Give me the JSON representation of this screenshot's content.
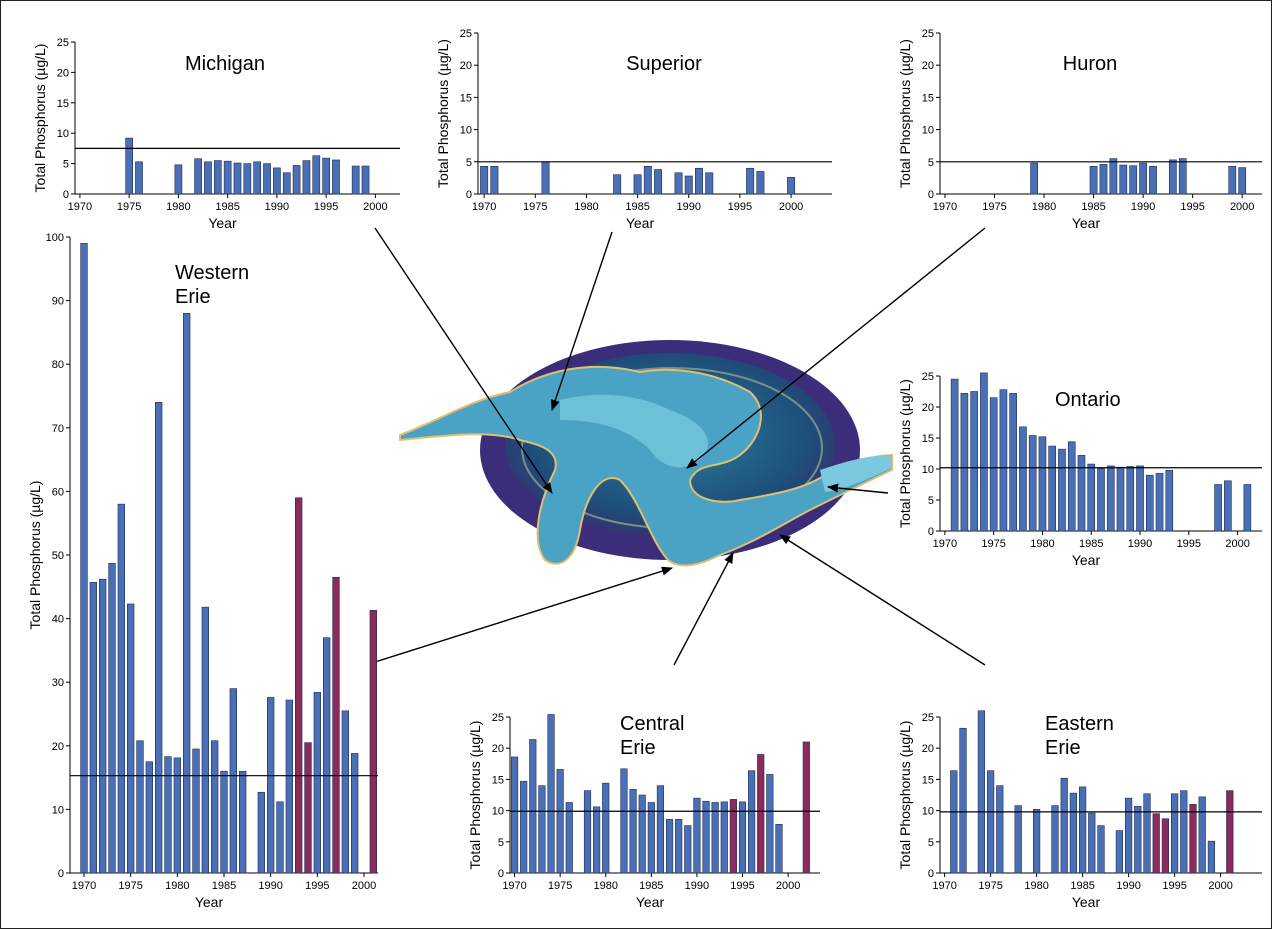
{
  "chart_data": [
    {
      "type": "bar",
      "title": "Michigan",
      "ylabel": "Total Phosphorus (µg/L)",
      "xlabel": "Year",
      "x": [
        1975,
        1976,
        1980,
        1982,
        1983,
        1984,
        1985,
        1986,
        1987,
        1988,
        1989,
        1990,
        1991,
        1992,
        1993,
        1994,
        1995,
        1996,
        1998,
        1999
      ],
      "values": [
        9.2,
        5.3,
        4.8,
        5.8,
        5.3,
        5.5,
        5.4,
        5.1,
        5.0,
        5.3,
        5.0,
        4.3,
        3.5,
        4.7,
        5.5,
        6.3,
        5.9,
        5.6,
        4.6,
        4.6
      ],
      "color": "#4a6fb5",
      "xlim": [
        1969.5,
        2002.5
      ],
      "ylim": [
        0,
        25
      ],
      "xticks": [
        1970,
        1975,
        1980,
        1985,
        1990,
        1995,
        2000
      ],
      "yticks": [
        0,
        5,
        10,
        15,
        20,
        25
      ],
      "reference_line": 7.5
    },
    {
      "type": "bar",
      "title": "Superior",
      "ylabel": "Total Phosphorus (µg/L)",
      "xlabel": "Year",
      "x": [
        1970,
        1971,
        1976,
        1983,
        1985,
        1986,
        1987,
        1989,
        1990,
        1991,
        1992,
        1996,
        1997,
        2000
      ],
      "values": [
        4.3,
        4.3,
        5.0,
        3.0,
        3.0,
        4.3,
        3.8,
        3.3,
        2.8,
        4.0,
        3.3,
        4.0,
        3.5,
        2.6
      ],
      "color": "#4a6fb5",
      "xlim": [
        1969.4,
        2004
      ],
      "ylim": [
        0,
        25
      ],
      "xticks": [
        1970,
        1975,
        1980,
        1985,
        1990,
        1995,
        2000
      ],
      "yticks": [
        0,
        5,
        10,
        15,
        20,
        25
      ],
      "reference_line": 5
    },
    {
      "type": "bar",
      "title": "Huron",
      "ylabel": "Total Phosphorus (µg/L)",
      "xlabel": "Year",
      "x": [
        1979,
        1985,
        1986,
        1987,
        1988,
        1989,
        1990,
        1991,
        1993,
        1994,
        1999,
        2000
      ],
      "values": [
        4.8,
        4.3,
        4.6,
        5.5,
        4.5,
        4.4,
        4.8,
        4.3,
        5.3,
        5.5,
        4.3,
        4.1
      ],
      "color": "#4a6fb5",
      "xlim": [
        1969.5,
        2002
      ],
      "ylim": [
        0,
        25
      ],
      "xticks": [
        1970,
        1975,
        1980,
        1985,
        1990,
        1995,
        2000
      ],
      "yticks": [
        0,
        5,
        10,
        15,
        20,
        25
      ],
      "reference_line": 5
    },
    {
      "type": "bar",
      "title": [
        "Western",
        "Erie"
      ],
      "ylabel": "Total Phosphorus (µg/L)",
      "xlabel": "Year",
      "x": [
        1970,
        1971,
        1972,
        1973,
        1974,
        1975,
        1976,
        1977,
        1978,
        1979,
        1980,
        1981,
        1982,
        1983,
        1984,
        1985,
        1986,
        1987,
        1989,
        1990,
        1991,
        1992,
        1993,
        1994,
        1995,
        1996,
        1997,
        1998,
        1999,
        2001
      ],
      "values": [
        99,
        45.7,
        46.2,
        48.7,
        58,
        42.3,
        20.8,
        17.5,
        74,
        18.3,
        18.1,
        88,
        19.5,
        41.8,
        20.8,
        16,
        29,
        16,
        12.7,
        27.6,
        11.2,
        27.2,
        59,
        20.5,
        28.4,
        37,
        46.5,
        25.5,
        18.8,
        41.3
      ],
      "colors": [
        "#4a6fb5",
        "#4a6fb5",
        "#4a6fb5",
        "#4a6fb5",
        "#4a6fb5",
        "#4a6fb5",
        "#4a6fb5",
        "#4a6fb5",
        "#4a6fb5",
        "#4a6fb5",
        "#4a6fb5",
        "#4a6fb5",
        "#4a6fb5",
        "#4a6fb5",
        "#4a6fb5",
        "#4a6fb5",
        "#4a6fb5",
        "#4a6fb5",
        "#4a6fb5",
        "#4a6fb5",
        "#4a6fb5",
        "#4a6fb5",
        "#8b2a5c",
        "#8b2a5c",
        "#4a6fb5",
        "#4a6fb5",
        "#8b2a5c",
        "#4a6fb5",
        "#4a6fb5",
        "#8b2a5c"
      ],
      "xlim": [
        1968.5,
        2001.5
      ],
      "ylim": [
        0,
        100
      ],
      "xticks": [
        1970,
        1975,
        1980,
        1985,
        1990,
        1995,
        2000
      ],
      "yticks": [
        0,
        10,
        20,
        30,
        40,
        50,
        60,
        70,
        80,
        90,
        100
      ],
      "reference_line": 15.3
    },
    {
      "type": "bar",
      "title": "Ontario",
      "ylabel": "Total Phosphorus (µg/L)",
      "xlabel": "Year",
      "x": [
        1971,
        1972,
        1973,
        1974,
        1975,
        1976,
        1977,
        1978,
        1979,
        1980,
        1981,
        1982,
        1983,
        1984,
        1985,
        1986,
        1987,
        1988,
        1989,
        1990,
        1991,
        1992,
        1993,
        1998,
        1999,
        2001
      ],
      "values": [
        24.5,
        22.2,
        22.5,
        25.5,
        21.5,
        22.8,
        22.2,
        16.8,
        15.4,
        15.2,
        13.7,
        13.2,
        14.4,
        12.2,
        10.8,
        10.1,
        10.5,
        10.3,
        10.4,
        10.5,
        9,
        9.3,
        9.8,
        7.5,
        8.1,
        7.5
      ],
      "color": "#4a6fb5",
      "xlim": [
        1969.5,
        2002.5
      ],
      "ylim": [
        0,
        25
      ],
      "xticks": [
        1970,
        1975,
        1980,
        1985,
        1990,
        1995,
        2000
      ],
      "yticks": [
        0,
        5,
        10,
        15,
        20,
        25
      ],
      "reference_line": 10.2
    },
    {
      "type": "bar",
      "title": [
        "Central",
        "Erie"
      ],
      "ylabel": "Total Phosphorus (µg/L)",
      "xlabel": "Year",
      "x": [
        1970,
        1971,
        1972,
        1973,
        1974,
        1975,
        1976,
        1978,
        1979,
        1980,
        1982,
        1983,
        1984,
        1985,
        1986,
        1987,
        1988,
        1989,
        1990,
        1991,
        1992,
        1993,
        1994,
        1995,
        1996,
        1997,
        1998,
        1999,
        2002
      ],
      "values": [
        18.6,
        14.7,
        21.4,
        14,
        25.4,
        16.6,
        11.3,
        13.2,
        10.6,
        14.4,
        16.7,
        13.4,
        12.5,
        11.3,
        14,
        8.6,
        8.6,
        7.6,
        12,
        11.5,
        11.3,
        11.4,
        11.8,
        11.4,
        16.4,
        19,
        15.8,
        7.8,
        21
      ],
      "colors": [
        "#4a6fb5",
        "#4a6fb5",
        "#4a6fb5",
        "#4a6fb5",
        "#4a6fb5",
        "#4a6fb5",
        "#4a6fb5",
        "#4a6fb5",
        "#4a6fb5",
        "#4a6fb5",
        "#4a6fb5",
        "#4a6fb5",
        "#4a6fb5",
        "#4a6fb5",
        "#4a6fb5",
        "#4a6fb5",
        "#4a6fb5",
        "#4a6fb5",
        "#4a6fb5",
        "#4a6fb5",
        "#4a6fb5",
        "#4a6fb5",
        "#8b2a5c",
        "#4a6fb5",
        "#4a6fb5",
        "#8b2a5c",
        "#4a6fb5",
        "#4a6fb5",
        "#8b2a5c"
      ],
      "xlim": [
        1969.5,
        2003.5
      ],
      "ylim": [
        0,
        25
      ],
      "xticks": [
        1970,
        1975,
        1980,
        1985,
        1990,
        1995,
        2000
      ],
      "yticks": [
        0,
        5,
        10,
        15,
        20,
        25
      ],
      "reference_line": 9.9
    },
    {
      "type": "bar",
      "title": [
        "Eastern",
        "Erie"
      ],
      "ylabel": "Total Phosphorus (µg/L)",
      "xlabel": "Year",
      "x": [
        1971,
        1972,
        1974,
        1975,
        1976,
        1978,
        1980,
        1982,
        1983,
        1984,
        1985,
        1986,
        1987,
        1989,
        1990,
        1991,
        1992,
        1993,
        1994,
        1995,
        1996,
        1997,
        1998,
        1999,
        2001
      ],
      "values": [
        16.4,
        23.2,
        26,
        16.4,
        14,
        10.8,
        10.2,
        10.8,
        15.2,
        12.8,
        13.8,
        9.6,
        7.6,
        6.8,
        12,
        10.7,
        12.7,
        9.5,
        8.7,
        12.7,
        13.2,
        11,
        12.2,
        5.1,
        13.2
      ],
      "colors": [
        "#4a6fb5",
        "#4a6fb5",
        "#4a6fb5",
        "#4a6fb5",
        "#4a6fb5",
        "#4a6fb5",
        "#4a6fb5",
        "#4a6fb5",
        "#4a6fb5",
        "#4a6fb5",
        "#4a6fb5",
        "#4a6fb5",
        "#4a6fb5",
        "#4a6fb5",
        "#4a6fb5",
        "#4a6fb5",
        "#4a6fb5",
        "#8b2a5c",
        "#8b2a5c",
        "#4a6fb5",
        "#4a6fb5",
        "#8b2a5c",
        "#4a6fb5",
        "#4a6fb5",
        "#8b2a5c"
      ],
      "xlim": [
        1969.5,
        2004.5
      ],
      "ylim": [
        0,
        25
      ],
      "xticks": [
        1970,
        1975,
        1980,
        1985,
        1990,
        1995,
        2000
      ],
      "yticks": [
        0,
        5,
        10,
        15,
        20,
        25
      ],
      "reference_line": 9.8
    }
  ]
}
